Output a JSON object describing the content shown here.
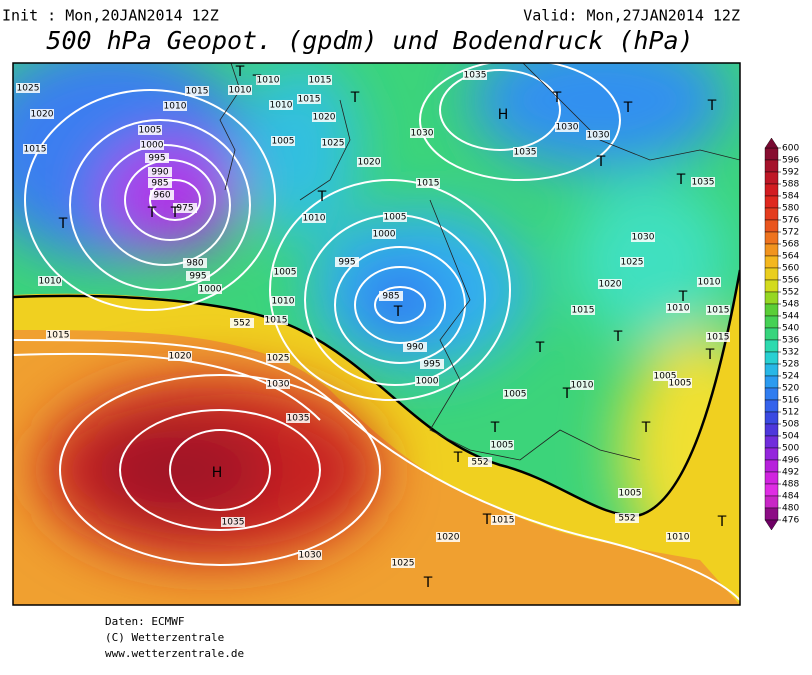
{
  "header": {
    "init": "Init : Mon,20JAN2014 12Z",
    "valid": "Valid: Mon,27JAN2014 12Z",
    "title": "500 hPa Geopot. (gpdm) und Bodendruck (hPa)"
  },
  "colorbar": {
    "ticks": [
      600,
      596,
      592,
      588,
      584,
      580,
      576,
      572,
      568,
      564,
      560,
      556,
      552,
      548,
      544,
      540,
      536,
      532,
      528,
      524,
      520,
      516,
      512,
      508,
      504,
      500,
      496,
      492,
      488,
      484,
      480,
      476
    ]
  },
  "map_labels": [
    "1025",
    "1020",
    "1015",
    "1010",
    "1015",
    "1020",
    "1025",
    "1030",
    "1035",
    "H",
    "1035",
    "1030",
    "1025",
    "T",
    "1020",
    "T",
    "1015",
    "T",
    "1005",
    "T",
    "1000",
    "995",
    "990",
    "985",
    "T",
    "995",
    "1000",
    "1005",
    "1010",
    "1005",
    "1010",
    "1015",
    "552",
    "980",
    "995",
    "1000",
    "975",
    "T",
    "T",
    "T",
    "960",
    "985",
    "990",
    "995",
    "1000",
    "1005",
    "1010",
    "1015",
    "1010",
    "T",
    "T",
    "1010",
    "1015",
    "1010",
    "1015",
    "T",
    "1020",
    "1025",
    "1005",
    "1020",
    "T",
    "1015",
    "1030",
    "1035",
    "H",
    "1035",
    "T",
    "1030",
    "1030",
    "T",
    "T",
    "T",
    "T",
    "1035",
    "1030",
    "1025",
    "1020",
    "1015",
    "T",
    "T",
    "T",
    "1010",
    "1010",
    "1015",
    "1015",
    "T",
    "1005",
    "1005",
    "1010",
    "1005",
    "T",
    "T",
    "552",
    "552",
    "1005",
    "1010",
    "T"
  ],
  "footer": [
    "Daten: ECMWF",
    "(C) Wetterzentrale",
    "www.wetterzentrale.de"
  ]
}
